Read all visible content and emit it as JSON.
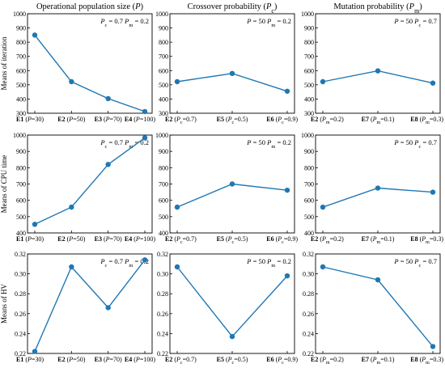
{
  "column_titles": [
    {
      "base": "Operational population size (",
      "sym": "P",
      "sub": "",
      "tail": ")"
    },
    {
      "base": "Crossover probability (",
      "sym": "P",
      "sub": "c",
      "tail": ")"
    },
    {
      "base": "Mutation probability (",
      "sym": "P",
      "sub": "m",
      "tail": ")"
    }
  ],
  "row_ylabels": [
    "Means of iteration",
    "Means of CPU time",
    "Means of HV"
  ],
  "colors": {
    "series": "#1f77b4",
    "axes": "#000000"
  },
  "chart_data": [
    {
      "type": "line",
      "row": 0,
      "col": 0,
      "categories": [
        {
          "e": "E1",
          "sym": "P",
          "sub": "",
          "eq": "=30"
        },
        {
          "e": "E2",
          "sym": "P",
          "sub": "",
          "eq": "=50"
        },
        {
          "e": "E3",
          "sym": "P",
          "sub": "",
          "eq": "=70"
        },
        {
          "e": "E4",
          "sym": "P",
          "sub": "",
          "eq": "=100"
        }
      ],
      "values": [
        850,
        522,
        403,
        312
      ],
      "ylim": [
        300,
        1000
      ],
      "yticks": [
        "300",
        "400",
        "500",
        "600",
        "700",
        "800",
        "900",
        "1000"
      ],
      "annotation": [
        {
          "sym": "P",
          "sub": "c",
          "eq": " = 0.7"
        },
        {
          "sym": "P",
          "sub": "m",
          "eq": " = 0.2"
        }
      ]
    },
    {
      "type": "line",
      "row": 0,
      "col": 1,
      "categories": [
        {
          "e": "E2",
          "sym": "P",
          "sub": "c",
          "eq": "=0.7"
        },
        {
          "e": "E5",
          "sym": "P",
          "sub": "c",
          "eq": "=0.5"
        },
        {
          "e": "E6",
          "sym": "P",
          "sub": "c",
          "eq": "=0.9"
        }
      ],
      "values": [
        522,
        580,
        455
      ],
      "ylim": [
        300,
        1000
      ],
      "yticks": [
        "300",
        "400",
        "500",
        "600",
        "700",
        "800",
        "900",
        "1000"
      ],
      "annotation": [
        {
          "sym": "P",
          "sub": "",
          "eq": " = 50"
        },
        {
          "sym": "P",
          "sub": "m",
          "eq": " = 0.2"
        }
      ]
    },
    {
      "type": "line",
      "row": 0,
      "col": 2,
      "categories": [
        {
          "e": "E2",
          "sym": "P",
          "sub": "m",
          "eq": "=0.2"
        },
        {
          "e": "E7",
          "sym": "P",
          "sub": "m",
          "eq": "=0.1"
        },
        {
          "e": "E8",
          "sym": "P",
          "sub": "m",
          "eq": "=0.3"
        }
      ],
      "values": [
        522,
        598,
        512
      ],
      "ylim": [
        300,
        1000
      ],
      "yticks": [
        "300",
        "400",
        "500",
        "600",
        "700",
        "800",
        "900",
        "1000"
      ],
      "annotation": [
        {
          "sym": "P",
          "sub": "",
          "eq": " = 50"
        },
        {
          "sym": "P",
          "sub": "c",
          "eq": " = 0.7"
        }
      ]
    },
    {
      "type": "line",
      "row": 1,
      "col": 0,
      "categories": [
        {
          "e": "E1",
          "sym": "P",
          "sub": "",
          "eq": "=30"
        },
        {
          "e": "E2",
          "sym": "P",
          "sub": "",
          "eq": "=50"
        },
        {
          "e": "E3",
          "sym": "P",
          "sub": "",
          "eq": "=70"
        },
        {
          "e": "E4",
          "sym": "P",
          "sub": "",
          "eq": "=100"
        }
      ],
      "values": [
        453,
        558,
        820,
        983
      ],
      "ylim": [
        400,
        1000
      ],
      "yticks": [
        "400",
        "500",
        "600",
        "700",
        "800",
        "900",
        "1000"
      ],
      "annotation": [
        {
          "sym": "P",
          "sub": "c",
          "eq": " = 0.7"
        },
        {
          "sym": "P",
          "sub": "m",
          "eq": " = 0.2"
        }
      ]
    },
    {
      "type": "line",
      "row": 1,
      "col": 1,
      "categories": [
        {
          "e": "E2",
          "sym": "P",
          "sub": "c",
          "eq": "=0.7"
        },
        {
          "e": "E5",
          "sym": "P",
          "sub": "c",
          "eq": "=0.5"
        },
        {
          "e": "E6",
          "sym": "P",
          "sub": "c",
          "eq": "=0.9"
        }
      ],
      "values": [
        558,
        700,
        662
      ],
      "ylim": [
        400,
        1000
      ],
      "yticks": [
        "400",
        "500",
        "600",
        "700",
        "800",
        "900",
        "1000"
      ],
      "annotation": [
        {
          "sym": "P",
          "sub": "",
          "eq": " = 50"
        },
        {
          "sym": "P",
          "sub": "m",
          "eq": " = 0.2"
        }
      ]
    },
    {
      "type": "line",
      "row": 1,
      "col": 2,
      "categories": [
        {
          "e": "E2",
          "sym": "P",
          "sub": "m",
          "eq": "=0.2"
        },
        {
          "e": "E7",
          "sym": "P",
          "sub": "m",
          "eq": "=0.1"
        },
        {
          "e": "E8",
          "sym": "P",
          "sub": "m",
          "eq": "=0.3"
        }
      ],
      "values": [
        558,
        675,
        650
      ],
      "ylim": [
        400,
        1000
      ],
      "yticks": [
        "400",
        "500",
        "600",
        "700",
        "800",
        "900",
        "1000"
      ],
      "annotation": [
        {
          "sym": "P",
          "sub": "",
          "eq": " = 50"
        },
        {
          "sym": "P",
          "sub": "c",
          "eq": " = 0.7"
        }
      ]
    },
    {
      "type": "line",
      "row": 2,
      "col": 0,
      "categories": [
        {
          "e": "E1",
          "sym": "P",
          "sub": "",
          "eq": "=30"
        },
        {
          "e": "E2",
          "sym": "P",
          "sub": "",
          "eq": "=50"
        },
        {
          "e": "E3",
          "sym": "P",
          "sub": "",
          "eq": "=70"
        },
        {
          "e": "E4",
          "sym": "P",
          "sub": "",
          "eq": "=100"
        }
      ],
      "values": [
        0.222,
        0.307,
        0.266,
        0.314
      ],
      "ylim": [
        0.22,
        0.32
      ],
      "yticks": [
        "0.22",
        "0.24",
        "0.26",
        "0.28",
        "0.30",
        "0.32"
      ],
      "annotation": [
        {
          "sym": "P",
          "sub": "c",
          "eq": " = 0.7"
        },
        {
          "sym": "P",
          "sub": "m",
          "eq": " = 0.2"
        }
      ]
    },
    {
      "type": "line",
      "row": 2,
      "col": 1,
      "categories": [
        {
          "e": "E2",
          "sym": "P",
          "sub": "c",
          "eq": "=0.7"
        },
        {
          "e": "E5",
          "sym": "P",
          "sub": "c",
          "eq": "=0.5"
        },
        {
          "e": "E6",
          "sym": "P",
          "sub": "c",
          "eq": "=0.9"
        }
      ],
      "values": [
        0.307,
        0.237,
        0.298
      ],
      "ylim": [
        0.22,
        0.32
      ],
      "yticks": [
        "0.22",
        "0.24",
        "0.26",
        "0.28",
        "0.30",
        "0.32"
      ],
      "annotation": [
        {
          "sym": "P",
          "sub": "",
          "eq": " = 50"
        },
        {
          "sym": "P",
          "sub": "m",
          "eq": " = 0.2"
        }
      ]
    },
    {
      "type": "line",
      "row": 2,
      "col": 2,
      "categories": [
        {
          "e": "E2",
          "sym": "P",
          "sub": "m",
          "eq": "=0.2"
        },
        {
          "e": "E7",
          "sym": "P",
          "sub": "m",
          "eq": "=0.1"
        },
        {
          "e": "E8",
          "sym": "P",
          "sub": "m",
          "eq": "=0.3"
        }
      ],
      "values": [
        0.307,
        0.294,
        0.227
      ],
      "ylim": [
        0.22,
        0.32
      ],
      "yticks": [
        "0.22",
        "0.24",
        "0.26",
        "0.28",
        "0.30",
        "0.32"
      ],
      "annotation": [
        {
          "sym": "P",
          "sub": "",
          "eq": " = 50"
        },
        {
          "sym": "P",
          "sub": "c",
          "eq": " = 0.7"
        }
      ]
    }
  ]
}
